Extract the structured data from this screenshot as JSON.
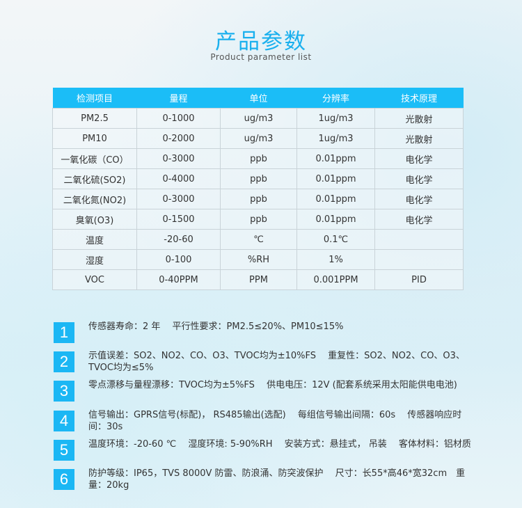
{
  "header": {
    "title": "产品参数",
    "subtitle": "Product parameter list"
  },
  "table": {
    "columns": [
      "检测项目",
      "量程",
      "单位",
      "分辨率",
      "技术原理"
    ],
    "rows": [
      [
        "PM2.5",
        "0-1000",
        "ug/m3",
        "1ug/m3",
        "光散射"
      ],
      [
        "PM10",
        "0-2000",
        "ug/m3",
        "1ug/m3",
        "光散射"
      ],
      [
        "一氧化碳（CO）",
        "0-3000",
        "ppb",
        "0.01ppm",
        "电化学"
      ],
      [
        "二氧化硫(SO2)",
        "0-4000",
        "ppb",
        "0.01ppm",
        "电化学"
      ],
      [
        "二氧化氮(NO2)",
        "0-3000",
        "ppb",
        "0.01ppm",
        "电化学"
      ],
      [
        "臭氧(O3)",
        "0-1500",
        "ppb",
        "0.01ppm",
        "电化学"
      ],
      [
        "温度",
        "-20-60",
        "℃",
        "0.1℃",
        ""
      ],
      [
        "湿度",
        "0-100",
        "%RH",
        "1%",
        ""
      ],
      [
        "VOC",
        "0-40PPM",
        "PPM",
        "0.001PPM",
        "PID"
      ]
    ]
  },
  "specs": [
    {
      "num": "1",
      "text": "传感器寿命：2 年　 平行性要求：PM2.5≤20%、PM10≤15%"
    },
    {
      "num": "2",
      "text": "示值误差：SO2、NO2、CO、O3、TVOC均为±10%FS　 重复性：SO2、NO2、CO、O3、TVOC均为≤5%"
    },
    {
      "num": "3",
      "text": "零点漂移与量程漂移：TVOC均为±5%FS　 供电电压：12V (配套系统采用太阳能供电电池)"
    },
    {
      "num": "4",
      "text": "信号输出：GPRS信号(标配)， RS485输出(选配)　 每组信号输出间隔：60s　 传感器响应时间：30s"
    },
    {
      "num": "5",
      "text": "温度环境：-20-60 ℃　 湿度环境: 5-90%RH　 安装方式：悬挂式， 吊装　 客体材料：铝材质"
    },
    {
      "num": "6",
      "text": "防护等级：IP65，TVS 8000V 防雷、防浪涌、防突波保护　 尺寸：长55*高46*宽32cm　重量：20kg"
    }
  ],
  "colors": {
    "accent": "#1bbdf7",
    "title": "#1ab0ee"
  }
}
